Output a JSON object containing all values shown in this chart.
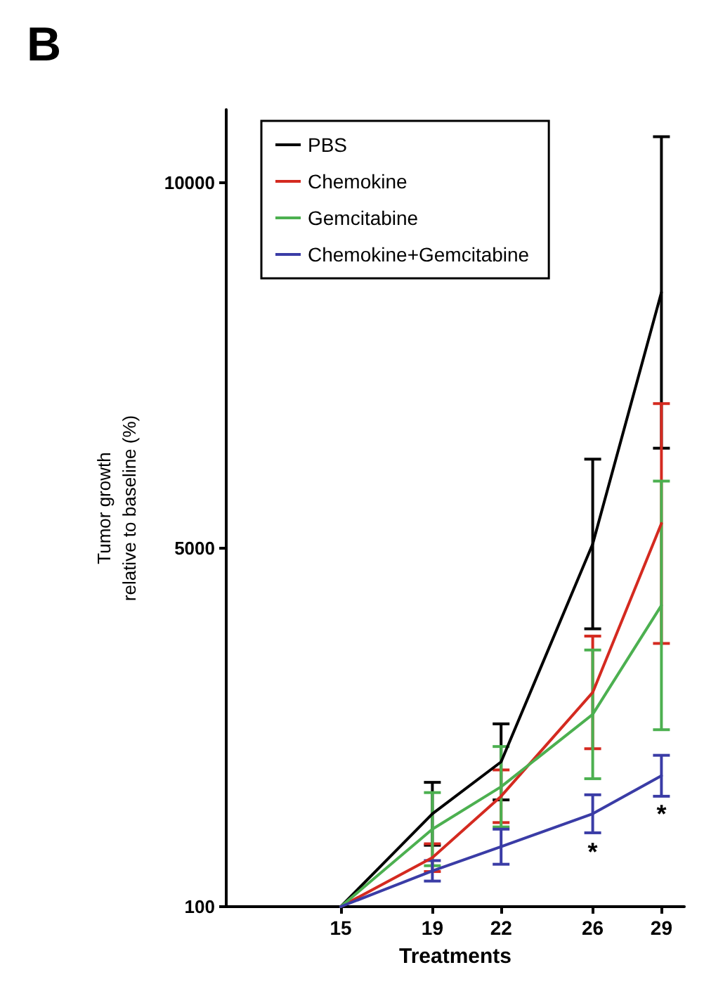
{
  "chart_data": {
    "type": "line",
    "title": "B",
    "xlabel": "Treatments",
    "ylabel": "Tumor growth\nrelative to baseline (%)",
    "x": [
      15,
      19,
      22,
      26,
      29
    ],
    "xlim": [
      10,
      30
    ],
    "xticks": [
      15,
      19,
      22,
      26,
      29
    ],
    "ylim": [
      100,
      11000
    ],
    "yticks": [
      100,
      5000,
      10000
    ],
    "series": [
      {
        "name": "PBS",
        "color": "#000000",
        "values": [
          100,
          1370,
          2080,
          5060,
          8500
        ],
        "errors": [
          null,
          430,
          520,
          1160,
          2130
        ]
      },
      {
        "name": "Chemokine",
        "color": "#d42a20",
        "values": [
          100,
          770,
          1610,
          3030,
          5340
        ],
        "errors": [
          null,
          190,
          360,
          770,
          1640
        ]
      },
      {
        "name": "Gemcitabine",
        "color": "#4cb050",
        "values": [
          100,
          1160,
          1740,
          2730,
          4220
        ],
        "errors": [
          null,
          500,
          550,
          880,
          1700
        ]
      },
      {
        "name": "Chemokine+Gemcitabine",
        "color": "#3a3ca6",
        "values": [
          100,
          590,
          920,
          1370,
          1890
        ],
        "errors": [
          null,
          140,
          240,
          260,
          280
        ]
      }
    ],
    "annotations": [
      {
        "text": "*",
        "x": 26,
        "y": 1370
      },
      {
        "text": "*",
        "x": 29,
        "y": 1890
      }
    ],
    "legend": "top left",
    "grid": false,
    "marker": "none",
    "line_style": "solid"
  }
}
